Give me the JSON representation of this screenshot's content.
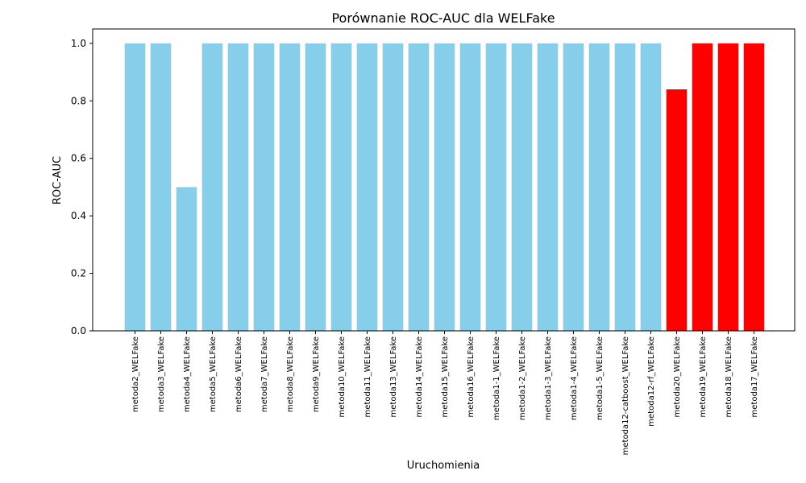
{
  "chart_data": {
    "type": "bar",
    "title": "Porównanie ROC-AUC dla WELFake",
    "xlabel": "Uruchomienia",
    "ylabel": "ROC-AUC",
    "ylim": [
      0,
      1.05
    ],
    "yticks": [
      0.0,
      0.2,
      0.4,
      0.6,
      0.8,
      1.0
    ],
    "grid": false,
    "categories": [
      "metoda2_WELFake",
      "metoda3_WELFake",
      "metoda4_WELFake",
      "metoda5_WELFake",
      "metoda6_WELFake",
      "metoda7_WELFake",
      "metoda8_WELFake",
      "metoda9_WELFake",
      "metoda10_WELFake",
      "metoda11_WELFake",
      "metoda13_WELFake",
      "metoda14_WELFake",
      "metoda15_WELFake",
      "metoda16_WELFake",
      "metoda1-1_WELFake",
      "metoda1-2_WELFake",
      "metoda1-3_WELFake",
      "metoda1-4_WELFake",
      "metoda1-5_WELFake",
      "metoda12-catboost_WELFake",
      "metoda12-rf_WELFake",
      "metoda20_WELFake",
      "metoda19_WELFake",
      "metoda18_WELFake",
      "metoda17_WELFake"
    ],
    "values": [
      1.0,
      1.0,
      0.5,
      1.0,
      1.0,
      1.0,
      1.0,
      1.0,
      1.0,
      1.0,
      1.0,
      1.0,
      1.0,
      1.0,
      1.0,
      1.0,
      1.0,
      1.0,
      1.0,
      1.0,
      1.0,
      0.84,
      1.0,
      1.0,
      1.0
    ],
    "colors": [
      "#87CEEB",
      "#87CEEB",
      "#87CEEB",
      "#87CEEB",
      "#87CEEB",
      "#87CEEB",
      "#87CEEB",
      "#87CEEB",
      "#87CEEB",
      "#87CEEB",
      "#87CEEB",
      "#87CEEB",
      "#87CEEB",
      "#87CEEB",
      "#87CEEB",
      "#87CEEB",
      "#87CEEB",
      "#87CEEB",
      "#87CEEB",
      "#87CEEB",
      "#87CEEB",
      "#FF0000",
      "#FF0000",
      "#FF0000",
      "#FF0000"
    ]
  }
}
